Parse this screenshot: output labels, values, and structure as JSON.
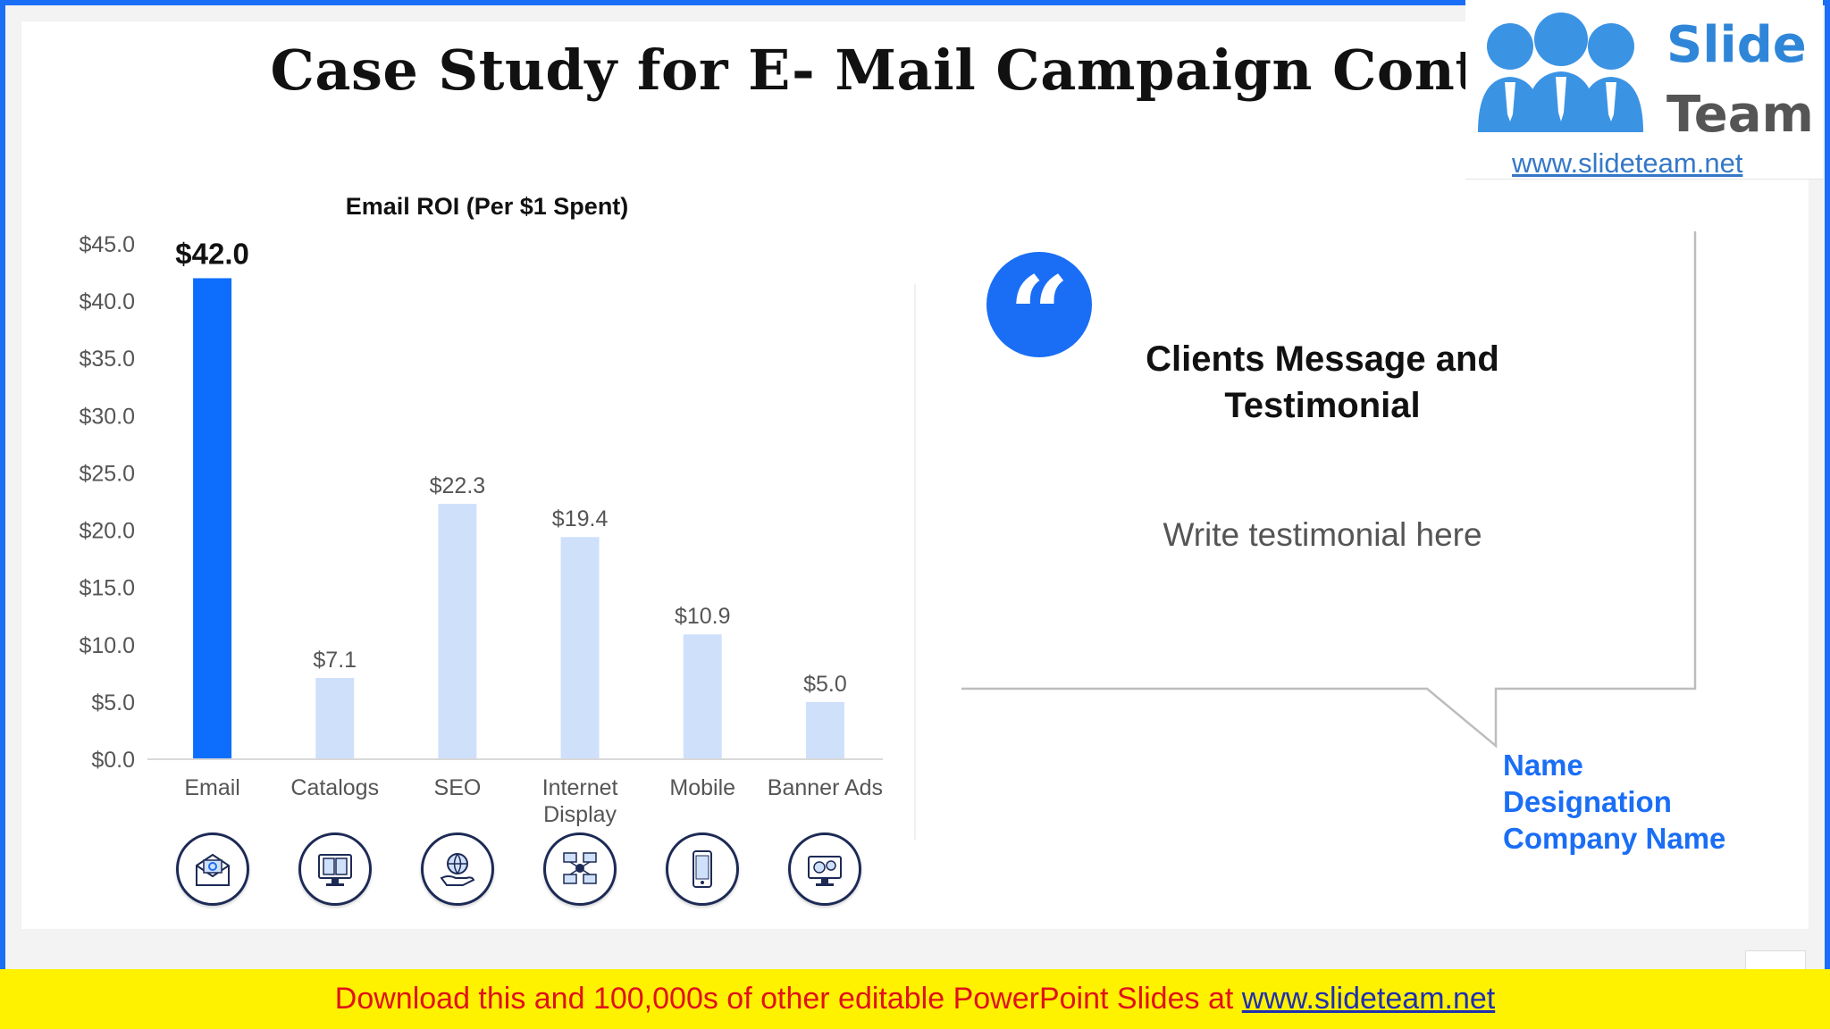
{
  "slide": {
    "title": "Case Study for E- Mail Campaign Contd.."
  },
  "logo": {
    "line1": "Slide",
    "line2": "Team",
    "url": "www.slideteam.net"
  },
  "chart_data": {
    "type": "bar",
    "title": "Email ROI (Per $1 Spent)",
    "xlabel": "",
    "ylabel": "",
    "categories": [
      "Email",
      "Catalogs",
      "SEO",
      "Internet Display",
      "Mobile",
      "Banner Ads"
    ],
    "values": [
      42.0,
      7.1,
      22.3,
      19.4,
      10.9,
      5.0
    ],
    "value_labels": [
      "$42.0",
      "$7.1",
      "$22.3",
      "$19.4",
      "$10.9",
      "$5.0"
    ],
    "highlight_index": 0,
    "ylim": [
      0,
      45
    ],
    "y_ticks": [
      0,
      5,
      10,
      15,
      20,
      25,
      30,
      35,
      40,
      45
    ],
    "y_tick_labels": [
      "$0.0",
      "$5.0",
      "$10.0",
      "$15.0",
      "$20.0",
      "$25.0",
      "$30.0",
      "$35.0",
      "$40.0",
      "$45.0"
    ],
    "grid": false,
    "legend": "none",
    "colors": {
      "highlight": "#0d6efd",
      "default": "#cfe0fb"
    }
  },
  "category_icons": [
    "email-icon",
    "catalog-icon",
    "seo-icon",
    "internet-display-icon",
    "mobile-icon",
    "banner-ads-icon"
  ],
  "testimonial": {
    "heading": "Clients Message and Testimonial",
    "body": "Write testimonial here",
    "name": "Name",
    "designation": "Designation",
    "company": "Company Name"
  },
  "banner": {
    "text": "Download this and 100,000s of other editable PowerPoint Slides at ",
    "link": "www.slideteam.net"
  }
}
